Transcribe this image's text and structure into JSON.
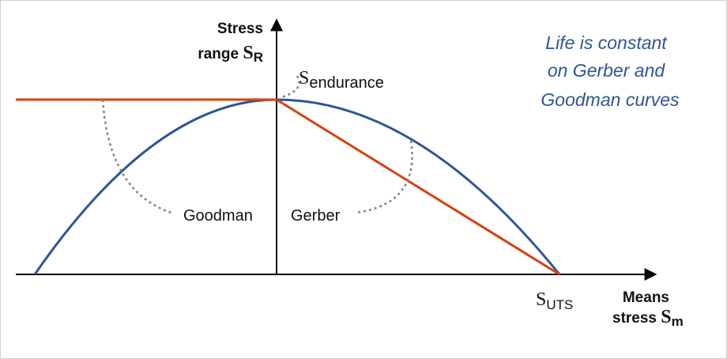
{
  "axes": {
    "y_label": {
      "line1": "Stress",
      "line2": "range",
      "symbol": "S",
      "subscript": "R"
    },
    "x_label": {
      "line1": "Means",
      "line2": "stress",
      "symbol": "S",
      "subscript": "m"
    }
  },
  "points": {
    "endurance": {
      "symbol": "S",
      "subscript": "endurance"
    },
    "uts": {
      "symbol": "S",
      "subscript": "UTS"
    }
  },
  "curves": {
    "goodman": "Goodman",
    "gerber": "Gerber"
  },
  "note": [
    "Life is constant",
    "on Gerber and",
    "Goodman curves"
  ]
}
